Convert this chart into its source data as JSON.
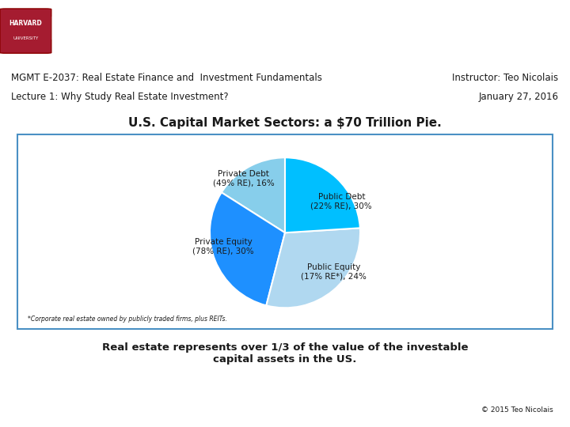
{
  "title": "U.S. Capital Market Sectors: a $70 Trillion Pie.",
  "header_bg_color": "#2E3A5C",
  "harvard_text": "HARVARD\nUNIVERSITY",
  "line1": "MGMT E-2037: Real Estate Finance and  Investment Fundamentals",
  "line2": "Lecture 1: Why Study Real Estate Investment?",
  "instructor": "Instructor: Teo Nicolais",
  "date": "January 27, 2016",
  "footer_text": "Real estate represents over 1/3 of the value of the investable\ncapital assets in the US.",
  "copyright": "© 2015 Teo Nicolais",
  "footnote": "*Corporate real estate owned by publicly traded firms, plus REITs.",
  "pie_values": [
    16,
    30,
    30,
    24
  ],
  "pie_labels": [
    "Private Debt\n(49% RE), 16%",
    "Public Debt\n(22% RE), 30%",
    "Private Equity\n(78% RE), 30%",
    "Public Equity\n(17% RE*), 24%"
  ],
  "pie_colors": [
    "#87CEEB",
    "#1E90FF",
    "#B0D8F0",
    "#00BFFF"
  ],
  "pie_startangle": 90,
  "accent_color": "#6B3A6B",
  "border_color": "#4A90C4",
  "bg_color": "#FFFFFF",
  "text_color": "#1A1A1A"
}
